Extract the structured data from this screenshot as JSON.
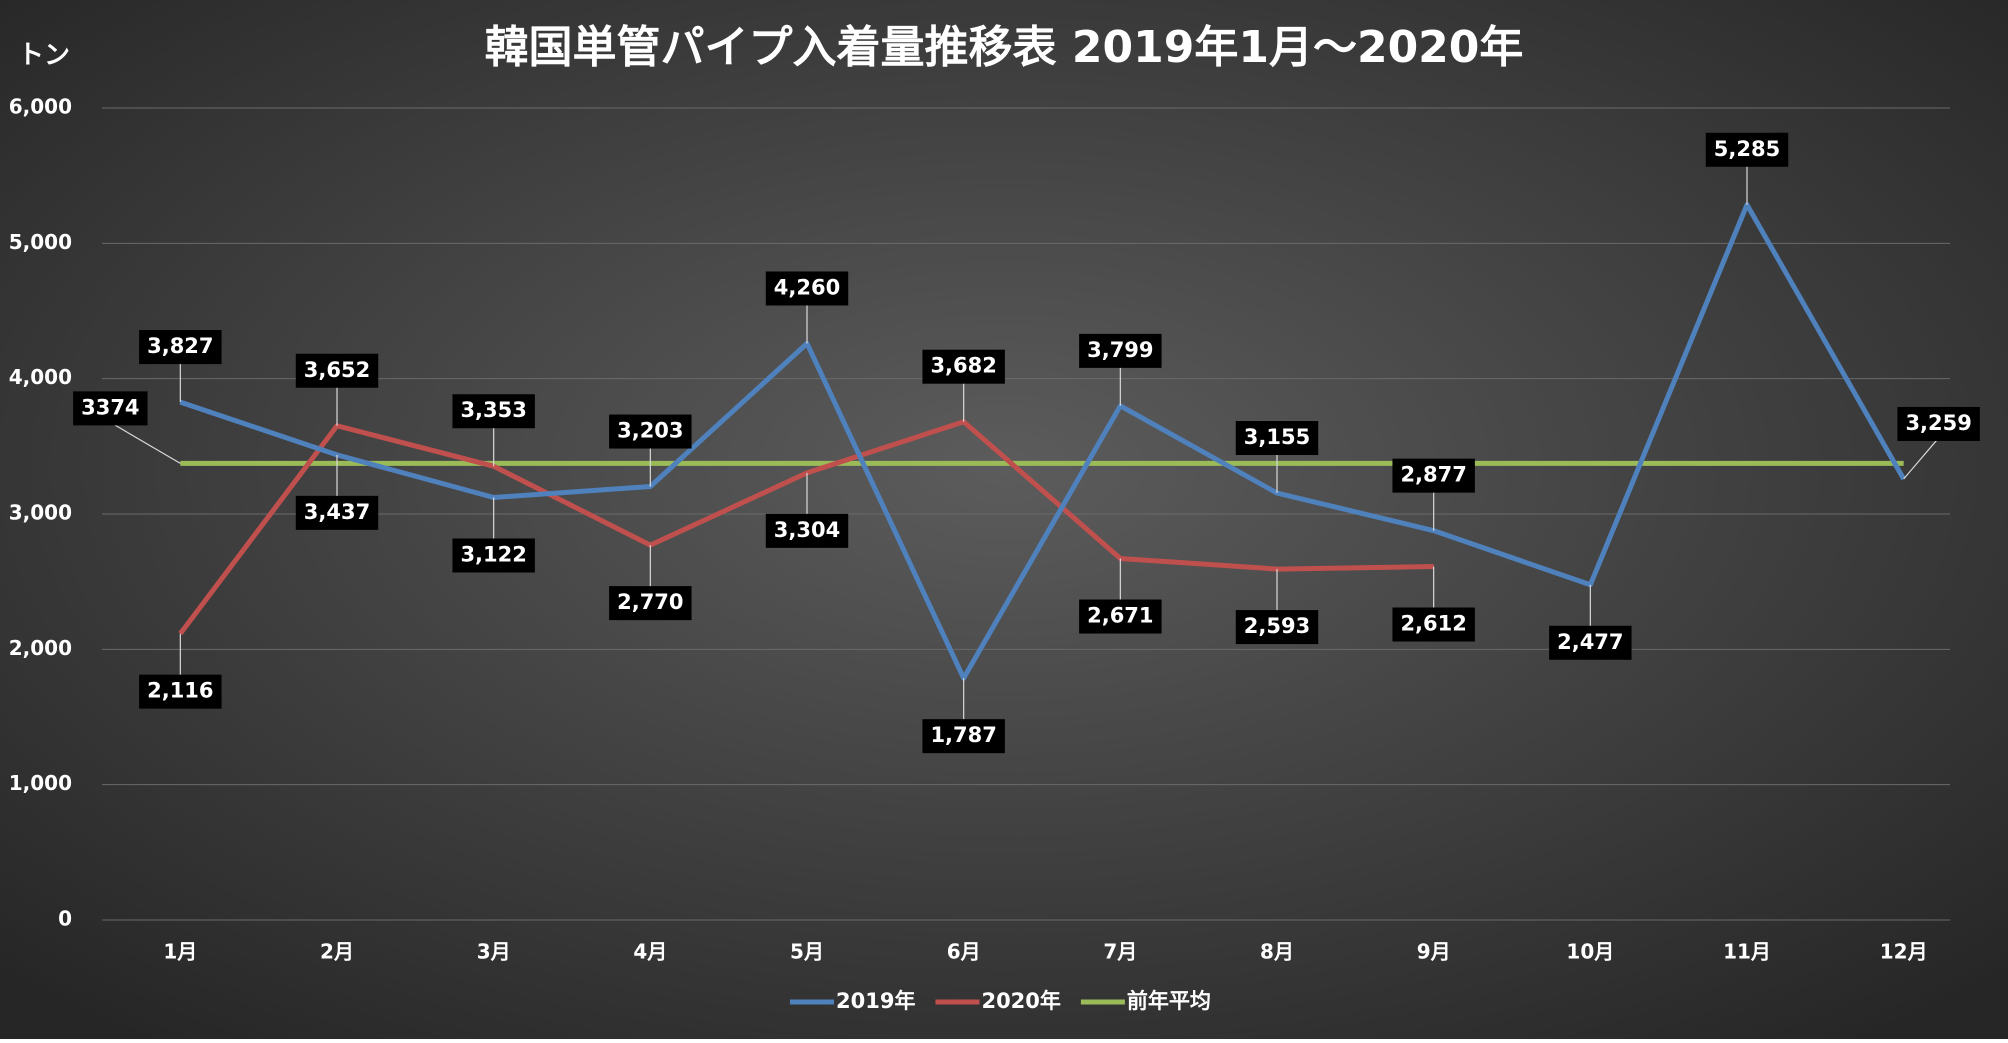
{
  "chart_data": {
    "type": "line",
    "title": "韓国単管パイプ入着量推移表 2019年1月～2020年",
    "y_axis_label": "トン",
    "categories": [
      "1月",
      "2月",
      "3月",
      "4月",
      "5月",
      "6月",
      "7月",
      "8月",
      "9月",
      "10月",
      "11月",
      "12月"
    ],
    "series": [
      {
        "name": "2019年",
        "color": "#4f81bd",
        "values": [
          3827,
          3437,
          3122,
          3203,
          4260,
          1787,
          3799,
          3155,
          2877,
          2477,
          5285,
          3259
        ],
        "value_labels": [
          "3,827",
          "3,437",
          "3,122",
          "3,203",
          "4,260",
          "1,787",
          "3,799",
          "3,155",
          "2,877",
          "2,477",
          "5,285",
          "3,259"
        ]
      },
      {
        "name": "2020年",
        "color": "#c0504d",
        "values": [
          2116,
          3652,
          3353,
          2770,
          3304,
          3682,
          2671,
          2593,
          2612,
          null,
          null,
          null
        ],
        "value_labels": [
          "2,116",
          "3,652",
          "3,353",
          "2,770",
          "3,304",
          "3,682",
          "2,671",
          "2,593",
          "2,612",
          null,
          null,
          null
        ]
      },
      {
        "name": "前年平均",
        "color": "#9bbb59",
        "values": [
          3374,
          3374,
          3374,
          3374,
          3374,
          3374,
          3374,
          3374,
          3374,
          3374,
          3374,
          3374
        ]
      }
    ],
    "ylim": [
      0,
      6000
    ],
    "yticks": [
      0,
      {
        "value": 1000,
        "label": "1,000"
      },
      {
        "value": 2000,
        "label": "2,000"
      },
      {
        "value": 3000,
        "label": "3,000"
      },
      {
        "value": 4000,
        "label": "4,000"
      },
      {
        "value": 5000,
        "label": "5,000"
      },
      {
        "value": 6000,
        "label": "6,000"
      }
    ],
    "grid": true,
    "legend": "bottom"
  }
}
